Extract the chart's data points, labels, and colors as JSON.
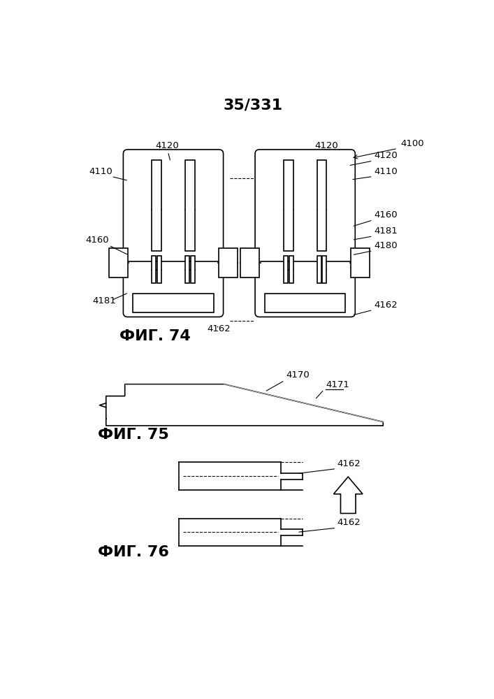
{
  "page_label": "35/331",
  "fig74_label": "ФИГ. 74",
  "fig75_label": "ФИГ. 75",
  "fig76_label": "ФИГ. 76",
  "bg_color": "#ffffff",
  "line_color": "#000000",
  "line_width": 1.2
}
